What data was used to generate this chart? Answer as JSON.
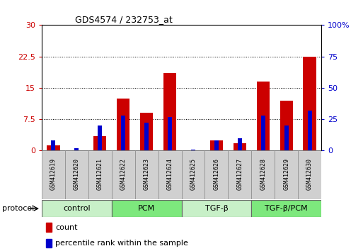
{
  "title": "GDS4574 / 232753_at",
  "samples": [
    "GSM412619",
    "GSM412620",
    "GSM412621",
    "GSM412622",
    "GSM412623",
    "GSM412624",
    "GSM412625",
    "GSM412626",
    "GSM412627",
    "GSM412628",
    "GSM412629",
    "GSM412630"
  ],
  "count_values": [
    1.2,
    0.0,
    3.5,
    12.5,
    9.0,
    18.5,
    0.0,
    2.5,
    1.8,
    16.5,
    12.0,
    22.5
  ],
  "percentile_values": [
    8,
    2,
    20,
    28,
    22,
    27,
    1,
    8,
    10,
    28,
    20,
    32
  ],
  "protocol_groups": [
    {
      "label": "control",
      "start": 0,
      "end": 3,
      "color": "#c8f0c8"
    },
    {
      "label": "PCM",
      "start": 3,
      "end": 6,
      "color": "#7de87d"
    },
    {
      "label": "TGF-β",
      "start": 6,
      "end": 9,
      "color": "#c8f0c8"
    },
    {
      "label": "TGF-β/PCM",
      "start": 9,
      "end": 12,
      "color": "#7de87d"
    }
  ],
  "left_ylim": [
    0,
    30
  ],
  "right_ylim": [
    0,
    100
  ],
  "left_yticks": [
    0,
    7.5,
    15,
    22.5,
    30
  ],
  "right_yticks": [
    0,
    25,
    50,
    75,
    100
  ],
  "left_color": "#cc0000",
  "right_color": "#0000cc",
  "bar_color_red": "#cc0000",
  "bar_color_blue": "#0000cc",
  "bg_color": "#ffffff",
  "plot_bg": "#ffffff",
  "grid_color": "#000000",
  "red_bar_width": 0.55,
  "blue_bar_width": 0.18,
  "cell_bg": "#d0d0d0",
  "proto_light": "#c8f0c8",
  "proto_dark": "#6de86d"
}
